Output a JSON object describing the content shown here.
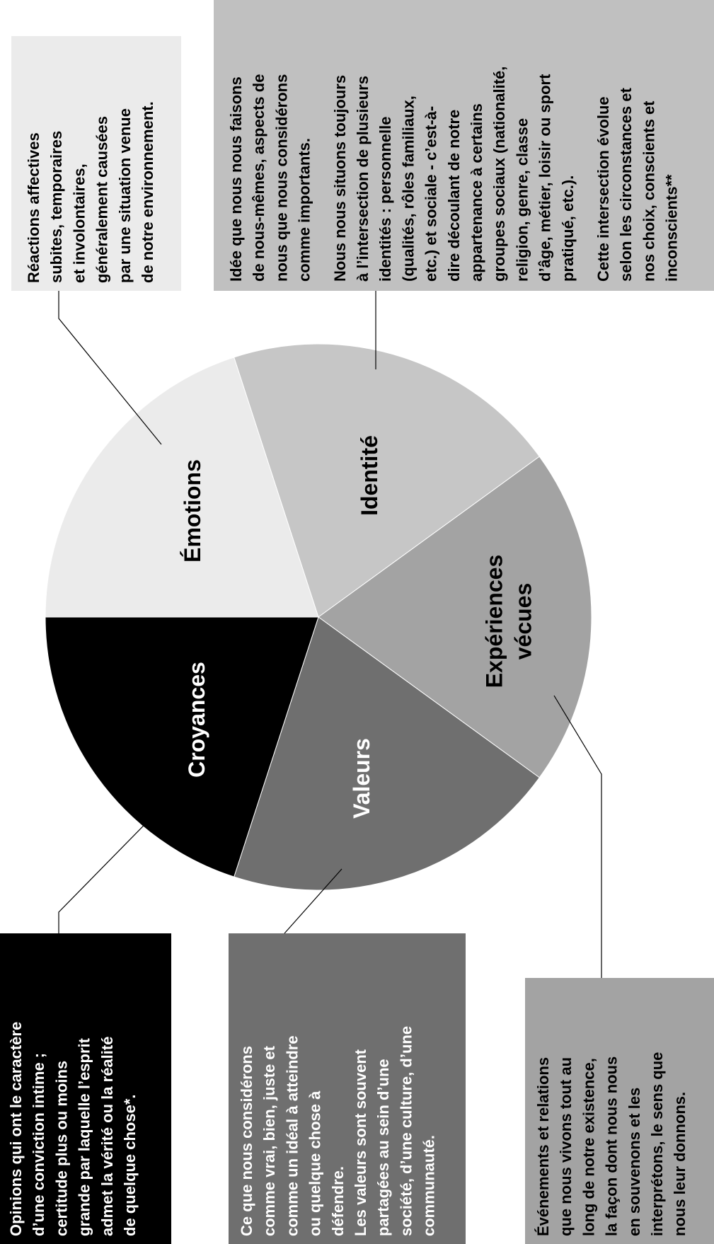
{
  "segments": [
    {
      "label": [
        "Émotions"
      ],
      "description": [
        [
          "Réactions affectives",
          "subites, temporaires",
          "et involontaires,",
          "généralement causées",
          "par une situation venue",
          "de notre environnement."
        ]
      ]
    },
    {
      "label": [
        "Identité"
      ],
      "description": [
        [
          "Idée que nous nous faisons",
          "de nous-mêmes, aspects de",
          "nous que nous considérons",
          "comme importants."
        ],
        [
          "Nous nous situons toujours",
          "à l’intersection de plusieurs",
          "identités : personnelle",
          "(qualités, rôles familiaux,",
          "etc.) et sociale - c’est-à-",
          "dire découlant de notre",
          "appartenance à certains",
          "groupes sociaux (nationalité,",
          "religion, genre, classe",
          "d’âge, métier, loisir ou sport",
          "pratiqué, etc.)."
        ],
        [
          "Cette intersection évolue",
          "selon les circonstances et",
          "nos choix, conscients et",
          "inconscients**"
        ]
      ]
    },
    {
      "label": [
        "Expériences",
        "vécues"
      ],
      "description": [
        [
          "Événements et relations",
          "que nous vivons tout au",
          "long de notre existence,",
          "la façon dont nous nous",
          "en souvenons et les",
          "interprétons, le sens que",
          "nous leur donnons."
        ]
      ]
    },
    {
      "label": [
        "Valeurs"
      ],
      "description": [
        [
          "Ce que nous considérons",
          "comme vrai, bien, juste et",
          "comme un idéal à atteindre",
          "ou quelque chose à",
          "défendre.",
          "Les valeurs sont souvent",
          "partagées au sein d’une",
          "société, d’une culture, d’une",
          "communauté."
        ]
      ]
    },
    {
      "label": [
        "Croyances"
      ],
      "description": [
        [
          "Opinions qui ont le caractère",
          "d’une conviction intime ;",
          "certitude plus ou moins",
          "grande par laquelle l’esprit",
          "admet la vérité ou la réalité",
          "de quelque chose*."
        ]
      ]
    }
  ]
}
